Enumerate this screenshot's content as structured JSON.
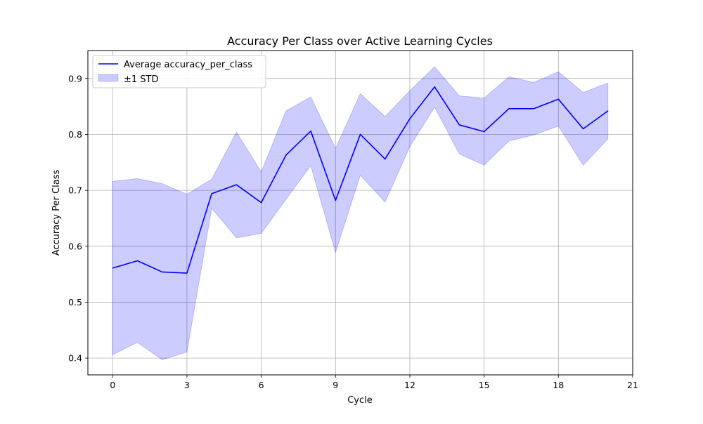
{
  "chart_data": {
    "type": "line",
    "title": "Accuracy Per Class over Active Learning Cycles",
    "xlabel": "Cycle",
    "ylabel": "Accuracy Per Class",
    "xlim": [
      -1,
      21
    ],
    "ylim": [
      0.37,
      0.95
    ],
    "xticks": [
      0,
      3,
      6,
      9,
      12,
      15,
      18,
      21
    ],
    "yticks": [
      0.4,
      0.5,
      0.6,
      0.7,
      0.8,
      0.9
    ],
    "grid": true,
    "legend_position": "upper-left",
    "x": [
      0,
      1,
      2,
      3,
      4,
      5,
      6,
      7,
      8,
      9,
      10,
      11,
      12,
      13,
      14,
      15,
      16,
      17,
      18,
      19,
      20
    ],
    "series": [
      {
        "name": "Average accuracy_per_class",
        "color": "#0000ff",
        "values": [
          0.561,
          0.574,
          0.554,
          0.552,
          0.694,
          0.71,
          0.678,
          0.763,
          0.806,
          0.682,
          0.8,
          0.756,
          0.828,
          0.885,
          0.817,
          0.805,
          0.846,
          0.846,
          0.863,
          0.81,
          0.842
        ]
      }
    ],
    "band": {
      "name": "±1 STD",
      "color": "#0000ff",
      "opacity": 0.2,
      "upper": [
        0.716,
        0.721,
        0.712,
        0.693,
        0.72,
        0.804,
        0.733,
        0.842,
        0.867,
        0.775,
        0.873,
        0.832,
        0.878,
        0.921,
        0.869,
        0.865,
        0.903,
        0.893,
        0.912,
        0.875,
        0.892
      ],
      "lower": [
        0.406,
        0.428,
        0.397,
        0.411,
        0.668,
        0.615,
        0.623,
        0.684,
        0.744,
        0.589,
        0.727,
        0.679,
        0.778,
        0.849,
        0.765,
        0.745,
        0.788,
        0.799,
        0.815,
        0.745,
        0.792
      ]
    }
  }
}
